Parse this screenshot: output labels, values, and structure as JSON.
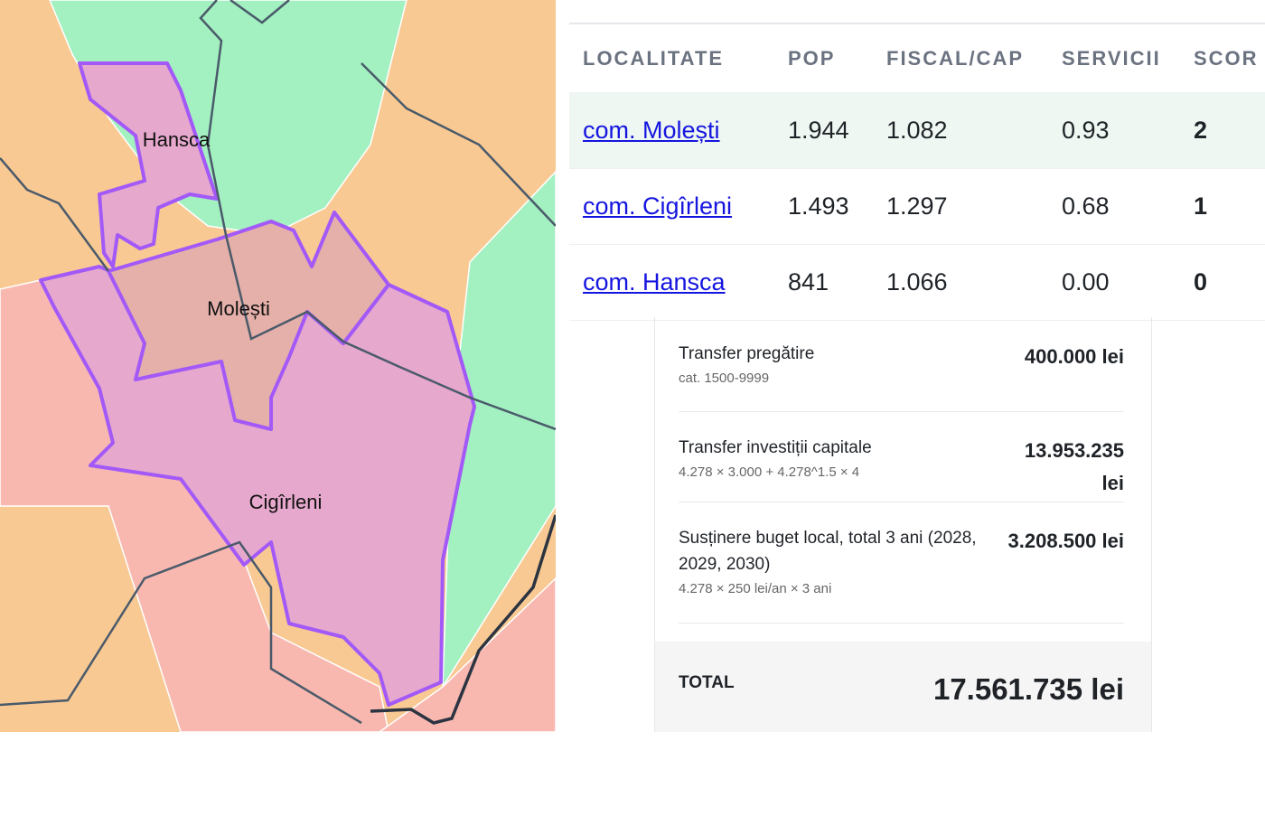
{
  "map": {
    "labels": [
      "Hansca",
      "Molești",
      "Cigîrleni"
    ]
  },
  "table": {
    "columns": [
      "LOCALITATE",
      "POP",
      "FISCAL/CAP",
      "SERVICII",
      "SCOR"
    ],
    "rows": [
      [
        "com. Molești",
        "1.944",
        "1.082",
        "0.93",
        "2"
      ],
      [
        "com. Cigîrleni",
        "1.493",
        "1.297",
        "0.68",
        "1"
      ],
      [
        "com. Hansca",
        "841",
        "1.066",
        "0.00",
        "0"
      ]
    ]
  },
  "breakdown": {
    "items": [
      {
        "label": "Transfer pregătire",
        "detail": "cat. 1500-9999",
        "amount": "400.000 lei"
      },
      {
        "label": "Transfer investiții capitale",
        "detail": "4.278 × 3.000 + 4.278^1.5 × 4",
        "amount": "13.953.235 lei"
      },
      {
        "label": "Susținere buget local, total 3 ani (2028, 2029, 2030)",
        "detail": "4.278 × 250 lei/an × 3 ani",
        "amount": "3.208.500 lei"
      }
    ],
    "total_label": "TOTAL",
    "total": "17.561.735 lei"
  }
}
